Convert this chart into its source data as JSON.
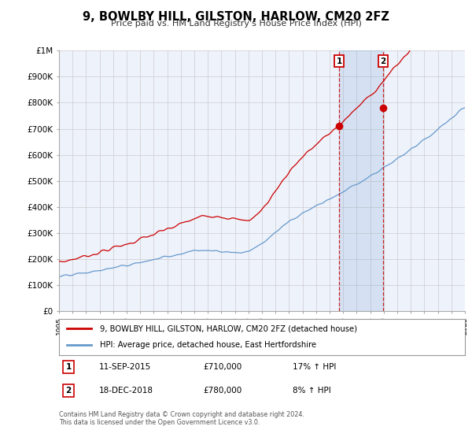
{
  "title": "9, BOWLBY HILL, GILSTON, HARLOW, CM20 2FZ",
  "subtitle": "Price paid vs. HM Land Registry's House Price Index (HPI)",
  "red_label": "9, BOWLBY HILL, GILSTON, HARLOW, CM20 2FZ (detached house)",
  "blue_label": "HPI: Average price, detached house, East Hertfordshire",
  "annotation1_date": "11-SEP-2015",
  "annotation1_price": "£710,000",
  "annotation1_hpi": "17% ↑ HPI",
  "annotation1_year": 2015.7,
  "annotation1_value": 710000,
  "annotation2_date": "18-DEC-2018",
  "annotation2_price": "£780,000",
  "annotation2_hpi": "8% ↑ HPI",
  "annotation2_year": 2018.96,
  "annotation2_value": 780000,
  "ylim": [
    0,
    1000000
  ],
  "xlim_start": 1995,
  "xlim_end": 2025,
  "ylabel_ticks": [
    0,
    100000,
    200000,
    300000,
    400000,
    500000,
    600000,
    700000,
    800000,
    900000,
    1000000
  ],
  "ylabel_labels": [
    "£0",
    "£100K",
    "£200K",
    "£300K",
    "£400K",
    "£500K",
    "£600K",
    "£700K",
    "£800K",
    "£900K",
    "£1M"
  ],
  "red_color": "#cc0000",
  "blue_color": "#6699cc",
  "background_color": "#ffffff",
  "plot_bg_color": "#eef2fb",
  "grid_color": "#cccccc",
  "footer": "Contains HM Land Registry data © Crown copyright and database right 2024.\nThis data is licensed under the Open Government Licence v3.0."
}
